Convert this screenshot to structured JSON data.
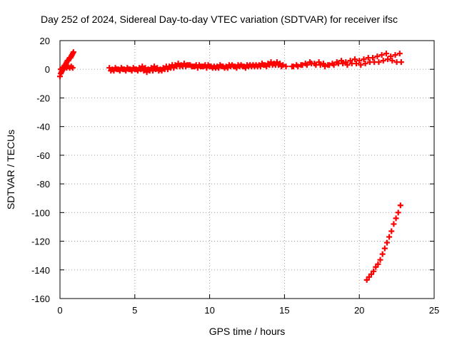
{
  "chart_data": {
    "type": "scatter",
    "title": "Day 252 of 2024, Sidereal Day-to-day VTEC variation (SDTVAR) for receiver ifsc",
    "xlabel": "GPS time / hours",
    "ylabel": "SDTVAR / TECUs",
    "xlim": [
      0,
      25
    ],
    "ylim": [
      -160,
      20
    ],
    "x_ticks": [
      "0",
      "5",
      "10",
      "15",
      "20",
      "25"
    ],
    "y_ticks": [
      "20",
      "0",
      "-20",
      "-40",
      "-60",
      "-80",
      "-100",
      "-120",
      "-140",
      "-160"
    ],
    "grid": true,
    "legend": "none",
    "marker": "plus",
    "color": "#ff0000",
    "series": [
      {
        "x": [
          0.0,
          0.05,
          0.1,
          0.15,
          0.2,
          0.25,
          0.3,
          0.35,
          0.4,
          0.45,
          0.5,
          0.55,
          0.6,
          0.65,
          0.7,
          0.75,
          0.8,
          0.85,
          0.9
        ],
        "y": [
          -5,
          -3,
          -2,
          -1,
          0,
          1,
          2,
          3,
          4,
          5,
          6,
          6,
          7,
          8,
          8,
          9,
          10,
          11,
          12
        ]
      },
      {
        "x": [
          0.05,
          0.15,
          0.25,
          0.35,
          0.45,
          0.55,
          0.65,
          0.75,
          0.85
        ],
        "y": [
          0,
          1,
          1,
          2,
          1,
          2,
          1,
          2,
          1
        ]
      },
      {
        "x": [
          3.3,
          3.5,
          3.7,
          3.9,
          4.1,
          4.3,
          4.5,
          4.7,
          4.9,
          5.1,
          5.3,
          5.5,
          5.7,
          5.9,
          6.1,
          6.3,
          6.5,
          6.7,
          6.9,
          7.1,
          7.3,
          7.5,
          7.7,
          7.9,
          8.1,
          8.3,
          8.5,
          8.7,
          8.9,
          9.1,
          9.3,
          9.5,
          9.7,
          9.9,
          10.1,
          10.3,
          10.5,
          10.7,
          10.9,
          11.1,
          11.3,
          11.5,
          11.7,
          11.9,
          12.1,
          12.3,
          12.5,
          12.7,
          12.9,
          13.1,
          13.3,
          13.5,
          13.7,
          13.9,
          14.1,
          14.3,
          14.5,
          14.7,
          14.9,
          15.1
        ],
        "y": [
          1,
          0,
          1,
          0,
          1,
          0,
          1,
          0,
          1,
          0,
          1,
          2,
          1,
          0,
          1,
          2,
          1,
          0,
          1,
          2,
          2,
          3,
          3,
          4,
          3,
          4,
          3,
          3,
          2,
          3,
          3,
          2,
          3,
          3,
          2,
          2,
          2,
          3,
          2,
          2,
          3,
          3,
          2,
          3,
          3,
          2,
          3,
          3,
          3,
          3,
          3,
          4,
          3,
          4,
          5,
          4,
          5,
          4,
          3,
          2
        ]
      },
      {
        "x": [
          3.4,
          3.6,
          3.8,
          4.0,
          4.2,
          4.4,
          4.6,
          4.8,
          5.0,
          5.2,
          5.4,
          5.6,
          5.8,
          6.0,
          6.2,
          6.4,
          6.6,
          6.8,
          7.0,
          7.2,
          7.4,
          7.6,
          7.8,
          8.0,
          8.2,
          8.4,
          8.6,
          8.8,
          9.0,
          9.2,
          9.4,
          9.6,
          9.8,
          10.0,
          10.2,
          10.4,
          10.6,
          10.8,
          11.0,
          11.2,
          11.4,
          11.6,
          11.8,
          12.0,
          12.2,
          12.4,
          12.6,
          12.8,
          13.0,
          13.2,
          13.4,
          13.6,
          13.8,
          14.0,
          14.2,
          14.4,
          14.6,
          14.8
        ],
        "y": [
          -1,
          -1,
          0,
          -1,
          0,
          -1,
          0,
          -1,
          0,
          -1,
          0,
          -1,
          -2,
          -1,
          -1,
          0,
          -1,
          -1,
          0,
          0,
          1,
          1,
          2,
          2,
          2,
          2,
          3,
          2,
          2,
          1,
          2,
          2,
          1,
          2,
          1,
          1,
          1,
          2,
          1,
          1,
          2,
          2,
          1,
          2,
          2,
          1,
          2,
          2,
          2,
          2,
          2,
          3,
          2,
          3,
          3,
          3,
          3,
          2
        ]
      },
      {
        "x": [
          15.5,
          15.8,
          16.1,
          16.4,
          16.7,
          17.0,
          17.3,
          17.6,
          17.9,
          18.2,
          18.5,
          18.8,
          19.1,
          19.4,
          19.7,
          20.0,
          20.3,
          20.6,
          20.9,
          21.2,
          21.5,
          21.8,
          22.1,
          22.4,
          22.7
        ],
        "y": [
          2,
          3,
          3,
          4,
          5,
          4,
          5,
          4,
          3,
          4,
          5,
          6,
          5,
          6,
          7,
          6,
          7,
          8,
          8,
          9,
          10,
          11,
          9,
          10,
          11
        ]
      },
      {
        "x": [
          15.6,
          15.9,
          16.2,
          16.5,
          16.8,
          17.1,
          17.4,
          17.7,
          18.0,
          18.3,
          18.6,
          18.9,
          19.2,
          19.5,
          19.8,
          20.1,
          20.4,
          20.7,
          21.0,
          21.3,
          21.6,
          21.9,
          22.2,
          22.5,
          22.8
        ],
        "y": [
          2,
          2,
          3,
          3,
          4,
          3,
          3,
          2,
          3,
          3,
          4,
          4,
          3,
          4,
          4,
          3,
          4,
          5,
          5,
          5,
          6,
          7,
          6,
          5,
          5
        ]
      },
      {
        "x": [
          20.5,
          20.65,
          20.8,
          20.95,
          21.1,
          21.25,
          21.4,
          21.55,
          21.7,
          21.85,
          22.0,
          22.15,
          22.3,
          22.45,
          22.6,
          22.75
        ],
        "y": [
          -147,
          -145,
          -143,
          -141,
          -138,
          -136,
          -133,
          -129,
          -125,
          -121,
          -117,
          -113,
          -108,
          -104,
          -100,
          -95
        ]
      }
    ]
  }
}
